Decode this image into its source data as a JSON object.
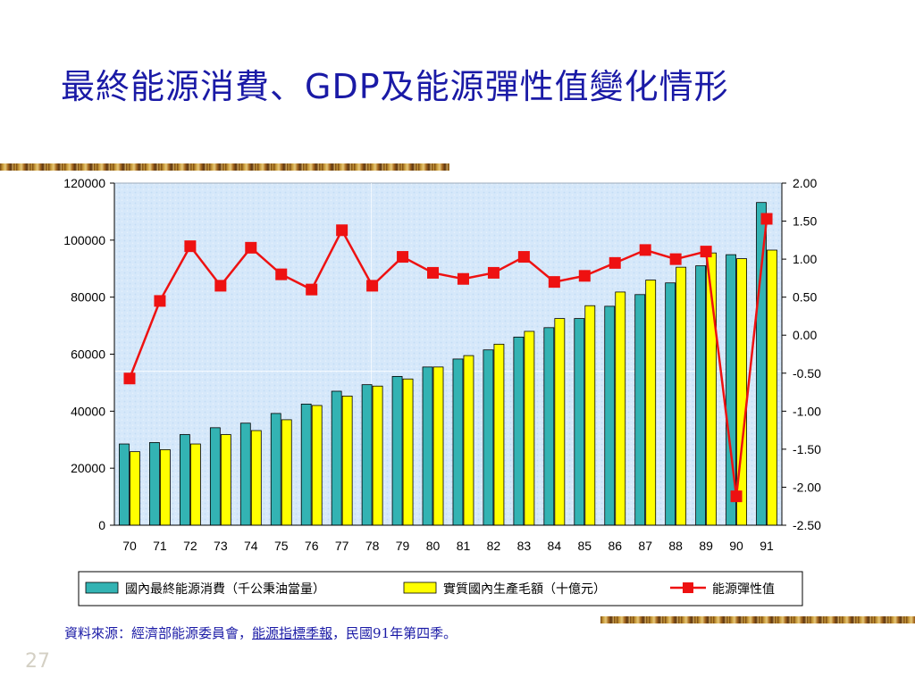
{
  "slide": {
    "title": "最終能源消費、GDP及能源彈性值變化情形",
    "source_prefix": "資料來源：經濟部能源委員會，",
    "source_pub": "能源指標季報",
    "source_suffix": "，民國91年第四季。",
    "page_number": "27",
    "band_colors": [
      "#7a4a12",
      "#c89a3a",
      "#e6c878",
      "#a86a20",
      "#5a3410",
      "#d8b060"
    ]
  },
  "chart_data": {
    "type": "bar",
    "categories": [
      "70",
      "71",
      "72",
      "73",
      "74",
      "75",
      "76",
      "77",
      "78",
      "79",
      "80",
      "81",
      "82",
      "83",
      "84",
      "85",
      "86",
      "87",
      "88",
      "89",
      "90",
      "91"
    ],
    "series": [
      {
        "name": "國內最終能源消費（千公秉油當量）",
        "type": "bar",
        "axis": "left",
        "color": "#33b3b3",
        "values": [
          28500,
          29000,
          31800,
          34200,
          35800,
          39200,
          42500,
          47000,
          49300,
          52200,
          55500,
          58300,
          61500,
          66000,
          69300,
          72500,
          76800,
          80900,
          85000,
          91000,
          94900,
          113200
        ]
      },
      {
        "name": "實質國內生產毛額（十億元）",
        "type": "bar",
        "axis": "left",
        "color": "#ffff00",
        "values": [
          25800,
          26500,
          28500,
          31800,
          33200,
          37000,
          42000,
          45300,
          48800,
          51300,
          55500,
          59500,
          63500,
          68000,
          72500,
          77000,
          81800,
          86000,
          90500,
          95500,
          93500,
          96500
        ]
      },
      {
        "name": "能源彈性值",
        "type": "line",
        "axis": "right",
        "color": "#ee1111",
        "values": [
          -0.57,
          0.45,
          1.17,
          0.65,
          1.15,
          0.8,
          0.6,
          1.38,
          0.65,
          1.03,
          0.82,
          0.74,
          0.82,
          1.03,
          0.7,
          0.78,
          0.95,
          1.12,
          1.0,
          1.1,
          -2.12,
          1.53
        ]
      }
    ],
    "y_left": {
      "min": 0,
      "max": 120000,
      "ticks": [
        "0",
        "20000",
        "40000",
        "60000",
        "80000",
        "100000",
        "120000"
      ]
    },
    "y_right": {
      "min": -2.5,
      "max": 2.0,
      "ticks": [
        "-2.50",
        "-2.00",
        "-1.50",
        "-1.00",
        "-0.50",
        "0.00",
        "0.50",
        "1.00",
        "1.50",
        "2.00"
      ]
    },
    "legend_position": "bottom",
    "plot_background": "#d6e8fa",
    "grid": true
  }
}
